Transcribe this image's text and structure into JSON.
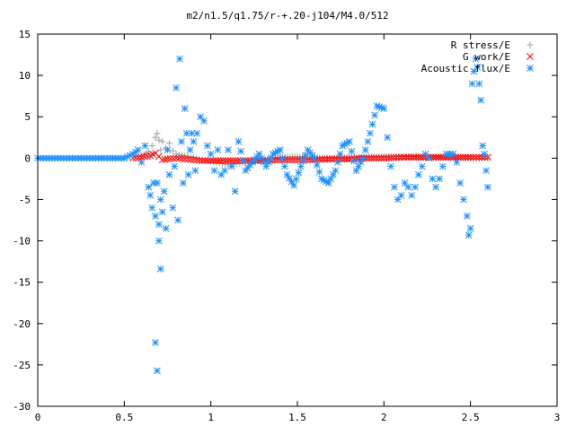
{
  "chart_data": {
    "type": "scatter",
    "title": "m2/n1.5/q1.75/r-+.20-j104/M4.0/512",
    "xlabel": "",
    "ylabel": "",
    "xlim": [
      0,
      3
    ],
    "ylim": [
      -30,
      15
    ],
    "xticks": [
      0,
      0.5,
      1,
      1.5,
      2,
      2.5,
      3
    ],
    "xtick_labels": [
      "0",
      "0.5",
      "1",
      "1.5",
      "2",
      "2.5",
      "3"
    ],
    "yticks": [
      15,
      10,
      5,
      0,
      -5,
      -10,
      -15,
      -20,
      -25,
      -30
    ],
    "ytick_labels": [
      "15",
      "10",
      "5",
      "0",
      "-5",
      "-10",
      "-15",
      "-20",
      "-25",
      "-30"
    ],
    "grid": false,
    "legend_position": "top-right",
    "series": [
      {
        "name": "R stress/E",
        "marker": "+",
        "color": "#a0a0a0",
        "x": [
          0.6,
          0.64,
          0.66,
          0.68,
          0.69,
          0.7,
          0.71,
          0.72,
          0.74,
          0.76,
          0.78,
          0.8,
          0.85,
          0.9,
          0.95,
          1.0,
          1.05,
          1.1,
          1.15,
          1.2,
          1.25,
          1.3,
          1.4,
          1.5,
          1.6,
          1.7,
          1.8,
          1.9,
          2.0,
          2.1,
          2.2,
          2.3,
          2.4,
          2.5,
          2.55,
          2.6
        ],
        "y": [
          0.2,
          0.8,
          1.5,
          2.5,
          3.0,
          2.2,
          1.0,
          2.0,
          1.2,
          1.8,
          0.9,
          0.5,
          0.3,
          0.1,
          -0.2,
          -0.4,
          -0.6,
          -0.8,
          -0.7,
          -0.5,
          -0.3,
          -0.2,
          0.1,
          0.2,
          0.1,
          0.0,
          0.1,
          0.2,
          0.2,
          0.2,
          0.2,
          0.1,
          0.1,
          0.0,
          0.0,
          0.0
        ]
      },
      {
        "name": "G work/E",
        "marker": "x",
        "color": "#ff0000",
        "x": [
          0.55,
          0.6,
          0.65,
          0.68,
          0.7,
          0.72,
          0.75,
          0.8,
          0.85,
          0.9,
          0.95,
          1.0,
          1.1,
          1.2,
          1.3,
          1.4,
          1.5,
          1.6,
          1.7,
          1.8,
          1.9,
          2.0,
          2.1,
          2.2,
          2.3,
          2.4,
          2.5,
          2.55,
          2.6
        ],
        "y": [
          0.0,
          0.1,
          0.3,
          0.6,
          0.2,
          -0.2,
          -0.1,
          0.0,
          -0.1,
          -0.2,
          -0.3,
          -0.3,
          -0.3,
          -0.3,
          -0.3,
          -0.2,
          -0.2,
          -0.2,
          -0.1,
          -0.1,
          0.0,
          0.0,
          0.1,
          0.1,
          0.1,
          0.1,
          0.1,
          0.1,
          0.1
        ]
      },
      {
        "name": "Acoustic flux/E",
        "marker": "*",
        "color": "#1e90ff",
        "x": [
          0.0,
          0.05,
          0.1,
          0.15,
          0.2,
          0.25,
          0.3,
          0.35,
          0.4,
          0.45,
          0.5,
          0.55,
          0.58,
          0.6,
          0.62,
          0.64,
          0.65,
          0.66,
          0.67,
          0.68,
          0.68,
          0.69,
          0.69,
          0.7,
          0.7,
          0.71,
          0.71,
          0.72,
          0.73,
          0.74,
          0.75,
          0.76,
          0.78,
          0.79,
          0.8,
          0.81,
          0.82,
          0.83,
          0.84,
          0.85,
          0.86,
          0.87,
          0.88,
          0.89,
          0.9,
          0.91,
          0.92,
          0.94,
          0.96,
          0.98,
          1.0,
          1.02,
          1.04,
          1.06,
          1.08,
          1.1,
          1.12,
          1.14,
          1.16,
          1.2,
          1.24,
          1.28,
          1.32,
          1.36,
          1.4,
          1.44,
          1.48,
          1.52,
          1.56,
          1.6,
          1.64,
          1.68,
          1.72,
          1.76,
          1.8,
          1.84,
          1.88,
          1.92,
          1.96,
          2.0,
          2.02,
          2.04,
          2.06,
          2.08,
          2.1,
          2.12,
          2.14,
          2.16,
          2.18,
          2.2,
          2.22,
          2.24,
          2.26,
          2.28,
          2.3,
          2.32,
          2.34,
          2.36,
          2.38,
          2.4,
          2.42,
          2.44,
          2.46,
          2.48,
          2.49,
          2.5,
          2.51,
          2.52,
          2.53,
          2.54,
          2.55,
          2.56,
          2.57,
          2.58,
          2.59,
          2.6
        ],
        "y": [
          0,
          0,
          0,
          0,
          0,
          0,
          0,
          0,
          0,
          0,
          0,
          0.5,
          1.0,
          -0.5,
          1.5,
          -3.5,
          -4.5,
          -6.0,
          -3.0,
          -22.3,
          -7.0,
          -25.7,
          -3.0,
          -10.0,
          -8.0,
          -13.4,
          -5.0,
          -6.5,
          -4.0,
          -8.5,
          1.0,
          -2.0,
          -6.0,
          -1.0,
          8.5,
          -7.5,
          12.0,
          2.0,
          -3.0,
          6.0,
          3.0,
          -2.0,
          1.0,
          3.0,
          2.0,
          -1.5,
          3.0,
          5.0,
          4.5,
          1.5,
          0.5,
          -1.5,
          1.0,
          -2.0,
          -1.5,
          1.0,
          -1.0,
          -4.0,
          2.0,
          -1.5,
          -0.5,
          0.5,
          -1.0,
          0.5,
          1.0,
          -2.0,
          -3.3,
          -1.0,
          1.0,
          0.0,
          -2.5,
          -3.0,
          -1.5,
          1.5,
          2.0,
          -1.5,
          0.0,
          3.0,
          6.3,
          6.0,
          2.5,
          -1.0,
          -3.5,
          -5.0,
          -4.5,
          -3.0,
          -3.5,
          -4.5,
          -3.5,
          -2.0,
          -1.0,
          0.5,
          0.0,
          -2.5,
          -3.5,
          -2.5,
          -1.0,
          0.5,
          0.5,
          0.5,
          -0.5,
          -3.0,
          -5.0,
          -7.0,
          -9.3,
          -8.5,
          9.0,
          10.5,
          12.0,
          11.0,
          9.0,
          7.0,
          1.5,
          0.5,
          -1.5,
          -3.5
        ]
      }
    ]
  }
}
